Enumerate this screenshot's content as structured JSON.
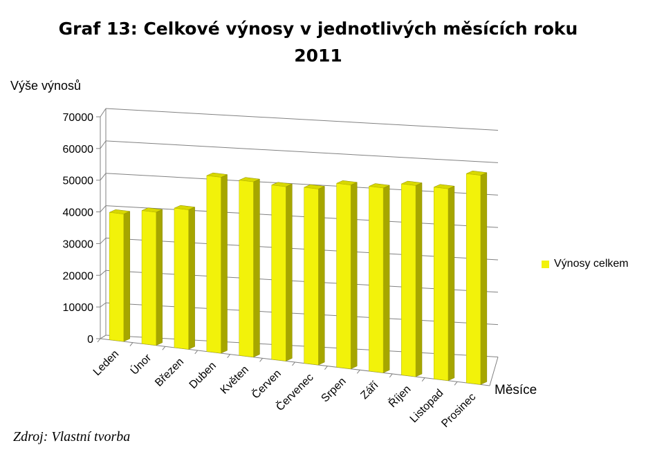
{
  "chart_data": {
    "type": "bar",
    "title_lines": [
      "Graf 13: Celkové výnosy v jednotlivých měsících roku",
      "2011"
    ],
    "ylabel": "Výše výnosů",
    "xlabel": "Měsíce",
    "categories": [
      "Leden",
      "Únor",
      "Březen",
      "Duben",
      "Květen",
      "Červen",
      "Červenec",
      "Srpen",
      "Září",
      "Říjen",
      "Listopad",
      "Prosinec"
    ],
    "series": [
      {
        "name": "Výnosy celkem",
        "values": [
          40200,
          42000,
          44000,
          55500,
          55300,
          55000,
          55500,
          58000,
          58300,
          60300,
          60500,
          66000
        ]
      }
    ],
    "ylim": [
      0,
      70000
    ],
    "yticks": [
      "0",
      "10000",
      "20000",
      "30000",
      "40000",
      "50000",
      "60000",
      "70000"
    ],
    "grid": true,
    "legend_position": "right",
    "colors": {
      "bar_front": "#f2f20a",
      "bar_side": "#a6a600",
      "bar_top": "#d8d800",
      "grid": "#808080"
    },
    "source": "Zdroj: Vlastní tvorba"
  }
}
